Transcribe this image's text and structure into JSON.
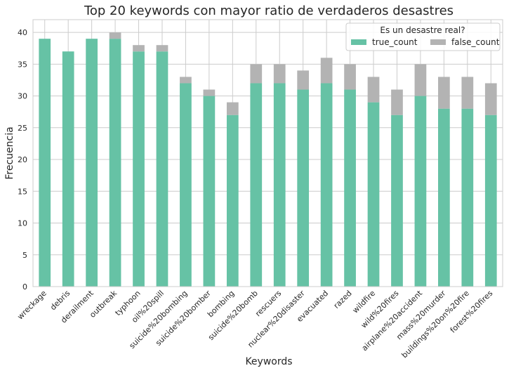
{
  "chart_data": {
    "type": "bar",
    "stacked": true,
    "title": "Top 20 keywords con mayor ratio de verdaderos desastres",
    "xlabel": "Keywords",
    "ylabel": "Frecuencia",
    "ylim": [
      0,
      42
    ],
    "yticks": [
      0,
      5,
      10,
      15,
      20,
      25,
      30,
      35,
      40
    ],
    "grid": true,
    "legend": {
      "title": "Es un desastre real?",
      "placement": "top-right"
    },
    "categories": [
      "wreckage",
      "debris",
      "derailment",
      "outbreak",
      "typhoon",
      "oil%20spill",
      "suicide%20bombing",
      "suicide%20bomber",
      "bombing",
      "suicide%20bomb",
      "rescuers",
      "nuclear%20disaster",
      "evacuated",
      "razed",
      "wildfire",
      "wild%20fires",
      "airplane%20accident",
      "mass%20murder",
      "buildings%20on%20fire",
      "forest%20fires"
    ],
    "series": [
      {
        "name": "true_count",
        "color": "#66c2a5",
        "values": [
          39,
          37,
          39,
          39,
          37,
          37,
          32,
          30,
          27,
          32,
          32,
          31,
          32,
          31,
          29,
          27,
          30,
          28,
          28,
          27
        ]
      },
      {
        "name": "false_count",
        "color": "#b3b3b3",
        "values": [
          0,
          0,
          0,
          1,
          1,
          1,
          1,
          1,
          2,
          3,
          3,
          3,
          4,
          4,
          4,
          4,
          5,
          5,
          5,
          5
        ]
      }
    ]
  }
}
